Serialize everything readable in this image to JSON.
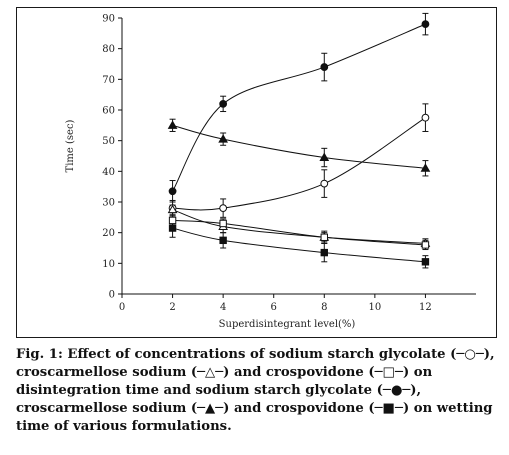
{
  "chart_data": {
    "type": "line",
    "xlabel": "Superdisintegrant level(%)",
    "ylabel": "Time (sec)",
    "xlim": [
      0,
      14
    ],
    "ylim": [
      0,
      90
    ],
    "xticks": [
      0,
      2,
      4,
      6,
      8,
      10,
      12
    ],
    "yticks": [
      0,
      10,
      20,
      30,
      40,
      50,
      60,
      70,
      80,
      90
    ],
    "x": [
      2,
      4,
      8,
      12
    ],
    "grid": false,
    "legend": "none (described in caption)",
    "series": [
      {
        "marker": "filled-circle",
        "values": [
          33.5,
          62,
          74,
          88
        ],
        "errors": [
          3.5,
          2.5,
          4.5,
          3.5
        ],
        "smooth": true
      },
      {
        "marker": "open-circle",
        "values": [
          28,
          28,
          36,
          57.5
        ],
        "errors": [
          2.5,
          3,
          4.5,
          4.5
        ],
        "smooth": true
      },
      {
        "marker": "filled-triangle",
        "values": [
          55,
          50.5,
          44.5,
          41
        ],
        "errors": [
          2,
          2,
          3,
          2.5
        ],
        "smooth": true
      },
      {
        "marker": "open-triangle",
        "values": [
          27.5,
          22,
          18.5,
          16.5
        ],
        "errors": [
          1.5,
          2,
          2,
          1.5
        ],
        "smooth": true
      },
      {
        "marker": "open-square",
        "values": [
          24,
          23,
          18.5,
          16
        ],
        "errors": [
          1.5,
          1.5,
          1.5,
          1.5
        ],
        "smooth": true
      },
      {
        "marker": "filled-square",
        "values": [
          21.5,
          17.5,
          13.5,
          10.5
        ],
        "errors": [
          3,
          2.5,
          3,
          2
        ],
        "smooth": true
      }
    ]
  },
  "caption": {
    "text": "Fig. 1: Effect of concentrations of sodium starch glycolate (─○─), croscarmellose sodium (─△─) and crospovidone (─□─) on disintegration time and sodium starch glycolate (─●─), croscarmellose sodium (─▲─) and crospovidone (─■─) on wetting time of various formulations."
  }
}
